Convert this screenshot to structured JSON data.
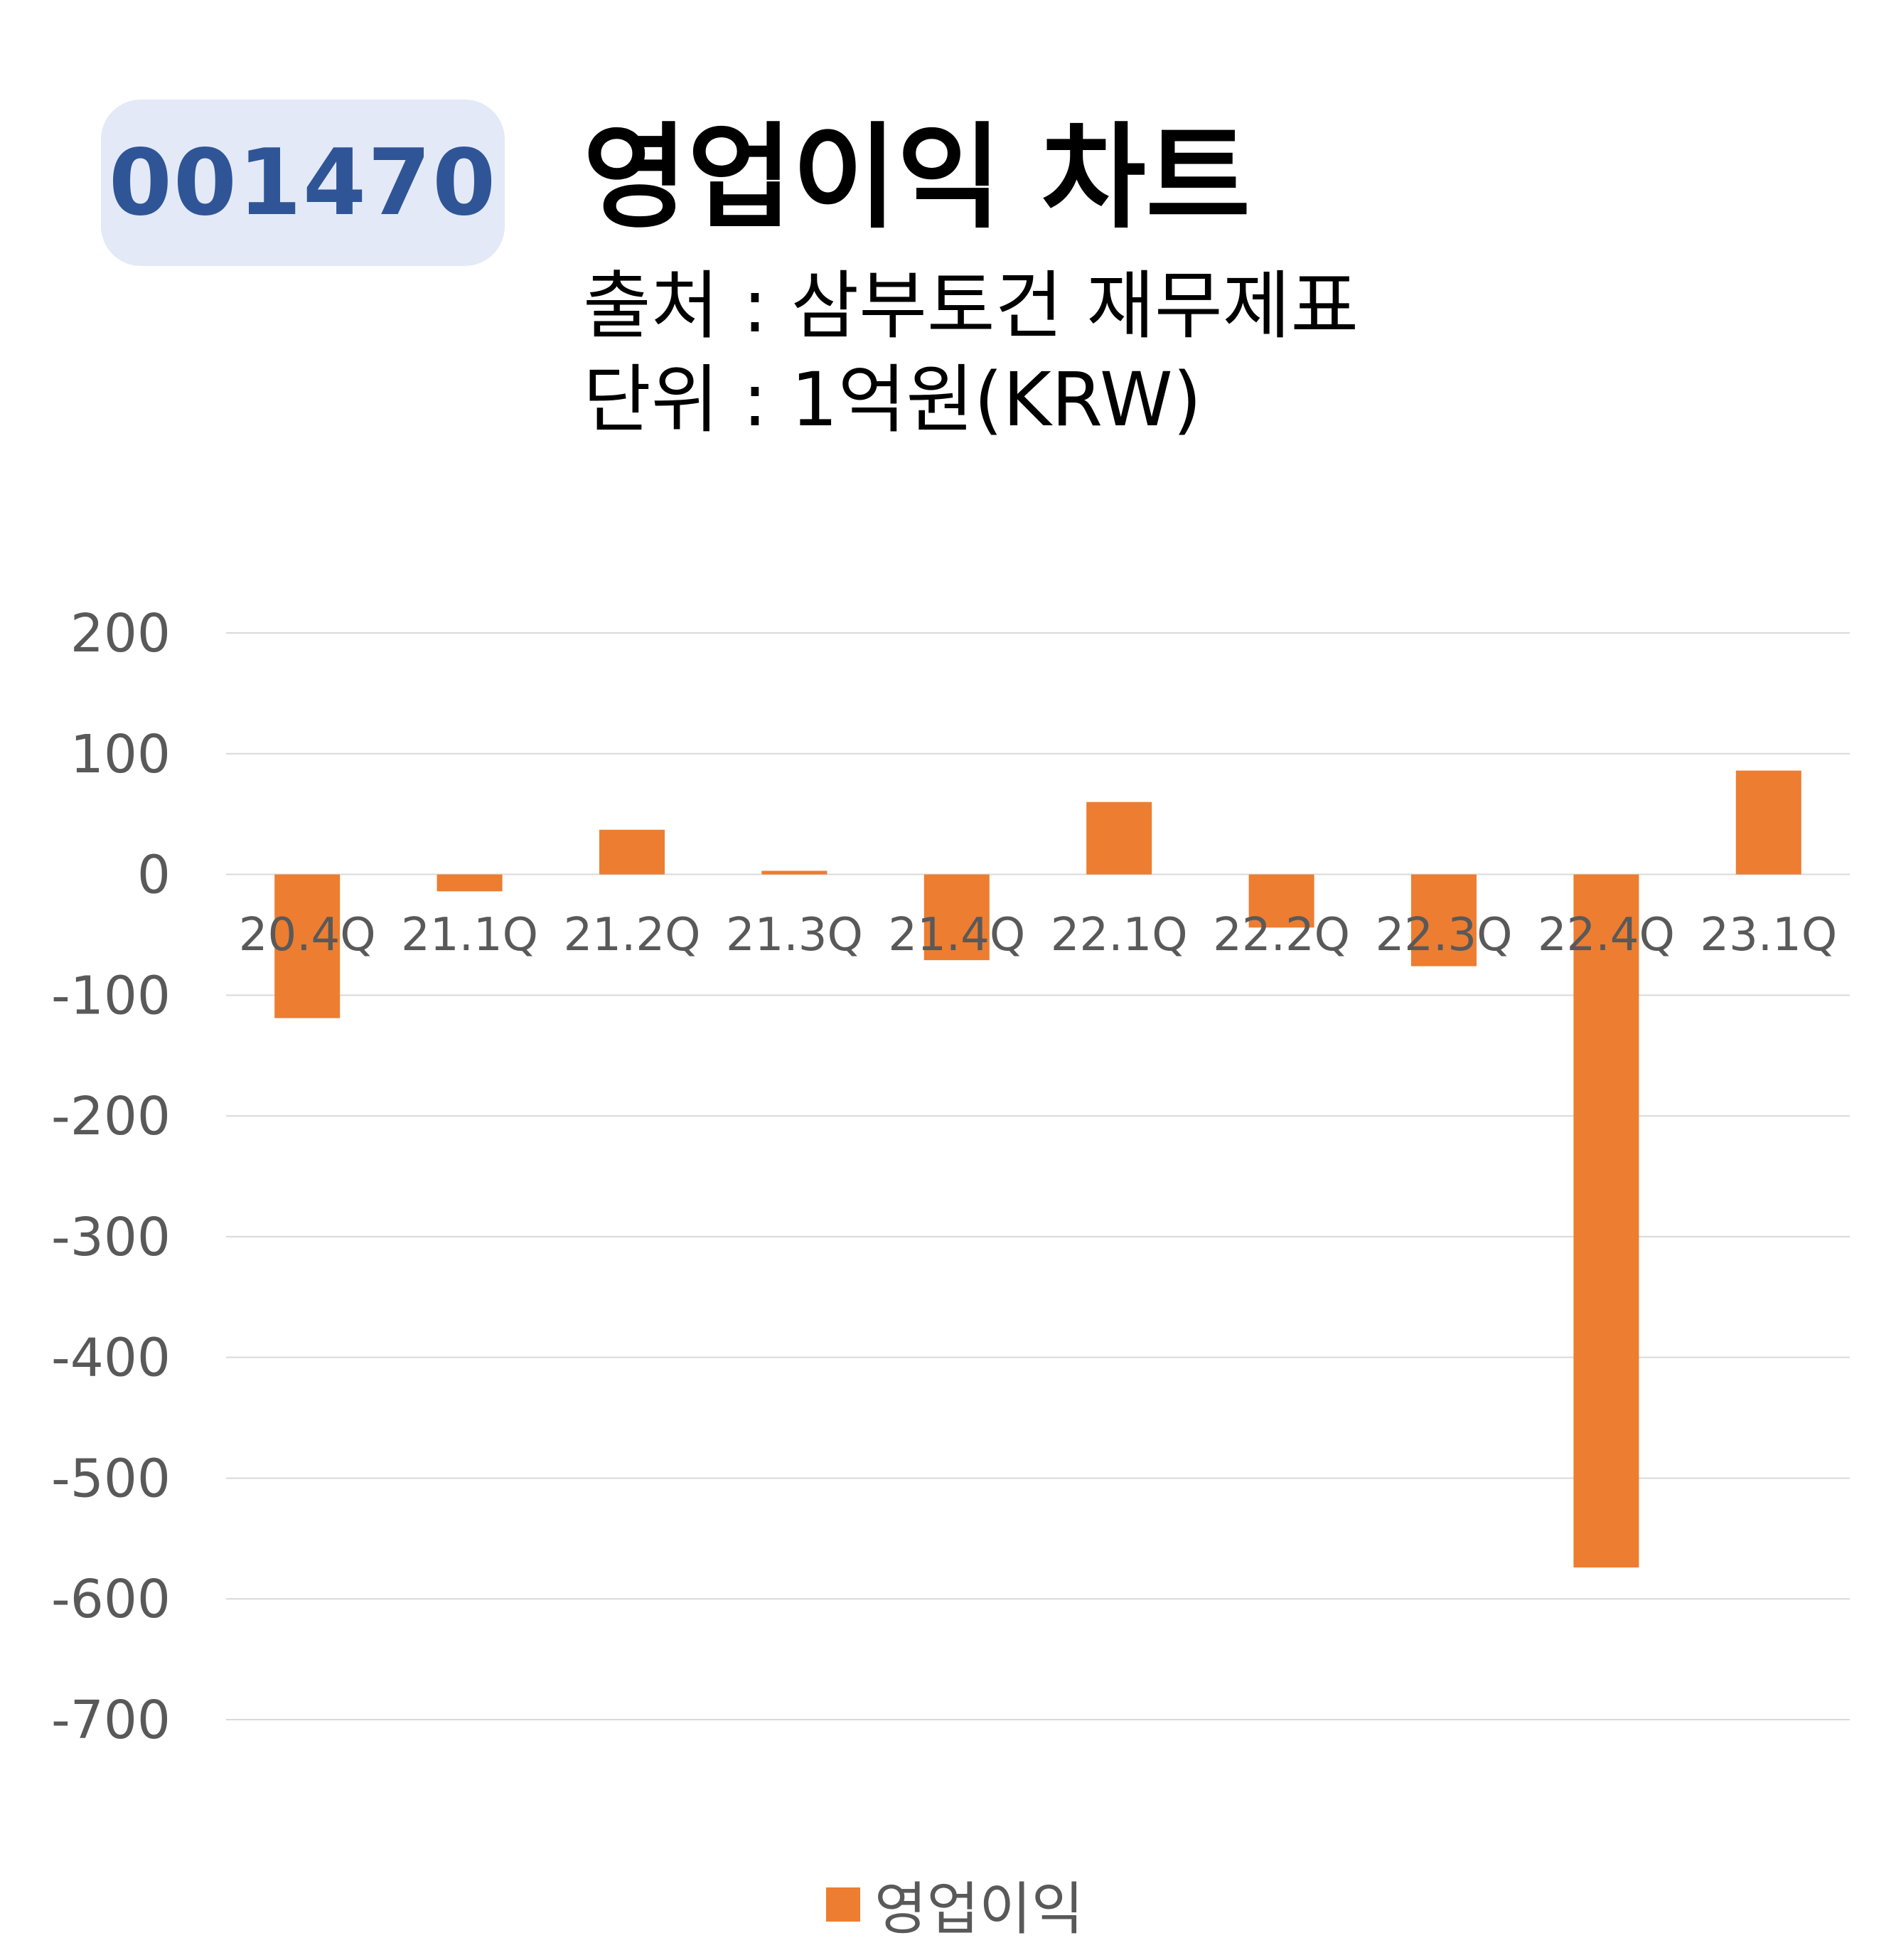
{
  "ticker": "001470",
  "title": "영업이익 차트",
  "source_line": "출처 : 삼부토건 재무제표",
  "unit_line": "단위 : 1억원(KRW)",
  "colors": {
    "bar": "#ed7d31",
    "badge_bg": "#e3e9f6",
    "badge_text": "#2f5597",
    "grid": "#d9d9d9",
    "tick": "#595959"
  },
  "chart_data": {
    "type": "bar",
    "categories": [
      "20.4Q",
      "21.1Q",
      "21.2Q",
      "21.3Q",
      "21.4Q",
      "22.1Q",
      "22.2Q",
      "22.3Q",
      "22.4Q",
      "23.1Q"
    ],
    "series": [
      {
        "name": "영업이익",
        "values": [
          -119,
          -14,
          37,
          3,
          -71,
          60,
          -44,
          -76,
          -574,
          86
        ]
      }
    ],
    "ylim": [
      -700,
      200
    ],
    "yticks": [
      200,
      100,
      0,
      -100,
      -200,
      -300,
      -400,
      -500,
      -600,
      -700
    ],
    "grid": true,
    "legend": "bottom"
  }
}
